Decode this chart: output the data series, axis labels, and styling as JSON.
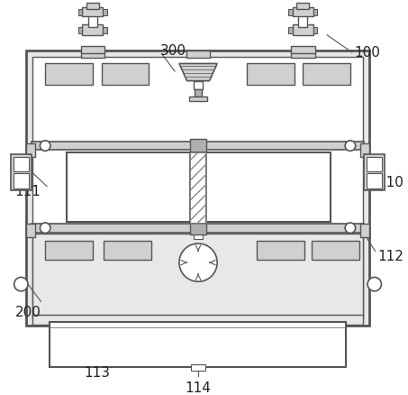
{
  "bg_color": "#ffffff",
  "lc": "#555555",
  "lc_light": "#888888",
  "fc_gray": "#d0d0d0",
  "fc_lgray": "#e8e8e8",
  "fc_dgray": "#b0b0b0",
  "fc_white": "#ffffff",
  "label_fs": 11,
  "label_color": "#222222"
}
